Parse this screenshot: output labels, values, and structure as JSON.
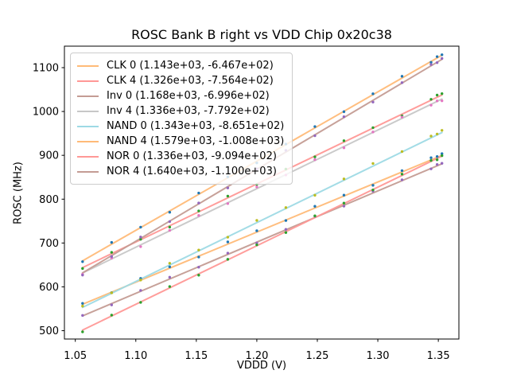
{
  "chart_data": {
    "type": "scatter",
    "title": "ROSC Bank B right vs VDD Chip 0x20c38",
    "xlabel": "VDDD (V)",
    "ylabel": "ROSC (MHz)",
    "xlim": [
      1.041,
      1.367
    ],
    "ylim": [
      481,
      1149
    ],
    "xticks": [
      1.05,
      1.1,
      1.15,
      1.2,
      1.25,
      1.3,
      1.35
    ],
    "xtick_labels": [
      "1.05",
      "1.10",
      "1.15",
      "1.20",
      "1.25",
      "1.30",
      "1.35"
    ],
    "yticks": [
      500,
      600,
      700,
      800,
      900,
      1000,
      1100
    ],
    "ytick_labels": [
      "500",
      "600",
      "700",
      "800",
      "900",
      "1000",
      "1100"
    ],
    "grid": false,
    "legend_position": "upper left",
    "x": [
      1.056,
      1.08,
      1.104,
      1.128,
      1.152,
      1.176,
      1.2,
      1.224,
      1.248,
      1.272,
      1.296,
      1.32,
      1.344,
      1.349,
      1.353
    ],
    "line_x_range": [
      1.056,
      1.353
    ],
    "fit_note": "legend shows (slope, intercept) of linear fit y = slope*x + intercept",
    "series": [
      {
        "name": "CLK 0",
        "label": "CLK 0 (1.143e+03, -6.467e+02)",
        "slope": 1143,
        "intercept": -646.7,
        "line_color": "#ffbb78",
        "marker_color": "#1f77b4",
        "residuals": [
          2,
          -1,
          4,
          3,
          -2,
          5,
          3,
          -1,
          4,
          2,
          -3,
          3,
          5,
          2,
          4
        ]
      },
      {
        "name": "CLK 4",
        "label": "CLK 4 (1.326e+03, -7.564e+02)",
        "slope": 1326,
        "intercept": -756.4,
        "line_color": "#ff9896",
        "marker_color": "#2ca02c",
        "residuals": [
          -2,
          3,
          1,
          -3,
          2,
          4,
          -1,
          2,
          -2,
          3,
          1,
          -4,
          2,
          5,
          3
        ]
      },
      {
        "name": "Inv 0",
        "label": "Inv 0 (1.168e+03, -6.996e+02)",
        "slope": 1168,
        "intercept": -699.6,
        "line_color": "#c49c94",
        "marker_color": "#9467bd",
        "residuals": [
          1,
          -3,
          2,
          4,
          -1,
          3,
          -2,
          1,
          3,
          -2,
          4,
          2,
          -1,
          3,
          1
        ]
      },
      {
        "name": "Inv 4",
        "label": "Inv 4 (1.336e+03, -7.792e+02)",
        "slope": 1336,
        "intercept": -779.2,
        "line_color": "#c7c7c7",
        "marker_color": "#e377c2",
        "residuals": [
          -3,
          2,
          -4,
          1,
          3,
          -2,
          4,
          -1,
          2,
          -3,
          1,
          3,
          -2,
          1,
          -4
        ]
      },
      {
        "name": "NAND 0",
        "label": "NAND 0 (1.343e+03, -8.651e+02)",
        "slope": 1343,
        "intercept": -865.1,
        "line_color": "#9edae5",
        "marker_color": "#bcbd22",
        "residuals": [
          3,
          1,
          -2,
          4,
          2,
          -1,
          5,
          2,
          -2,
          3,
          6,
          1,
          4,
          2,
          5
        ]
      },
      {
        "name": "NAND 4",
        "label": "NAND 4 (1.579e+03, -1.008e+03)",
        "slope": 1579,
        "intercept": -1008,
        "line_color": "#ffbb78",
        "marker_color": "#1f77b4",
        "residuals": [
          -2,
          4,
          1,
          -3,
          3,
          2,
          -4,
          1,
          3,
          -1,
          2,
          4,
          -2,
          3,
          1
        ]
      },
      {
        "name": "NOR 0",
        "label": "NOR 0 (1.336e+03, -9.094e+02)",
        "slope": 1336,
        "intercept": -909.4,
        "line_color": "#ff9896",
        "marker_color": "#2ca02c",
        "residuals": [
          -4,
          2,
          -1,
          3,
          -3,
          1,
          2,
          -2,
          4,
          1,
          -1,
          3,
          2,
          -3,
          1
        ]
      },
      {
        "name": "NOR 4",
        "label": "NOR 4 (1.640e+03, -1.100e+03)",
        "slope": 1640,
        "intercept": -1100,
        "line_color": "#c49c94",
        "marker_color": "#9467bd",
        "residuals": [
          -5,
          -2,
          3,
          -1,
          2,
          -3,
          1,
          4,
          -2,
          2,
          -4,
          1,
          3,
          -1,
          2
        ]
      }
    ]
  },
  "colors": {
    "background": "#ffffff",
    "spine": "#000000",
    "legend_border": "#cccccc"
  }
}
